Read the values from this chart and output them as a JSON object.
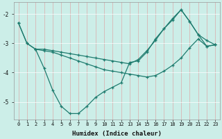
{
  "xlabel": "Humidex (Indice chaleur)",
  "bg_color": "#cceee8",
  "grid_color": "#aadddd",
  "line_color": "#1e7b6e",
  "xlim": [
    -0.5,
    23.5
  ],
  "ylim": [
    -5.6,
    -1.6
  ],
  "yticks": [
    -5,
    -4,
    -3,
    -2
  ],
  "xticks": [
    0,
    1,
    2,
    3,
    4,
    5,
    6,
    7,
    8,
    9,
    10,
    11,
    12,
    13,
    14,
    15,
    16,
    17,
    18,
    19,
    20,
    21,
    22,
    23
  ],
  "line1_x": [
    0,
    1,
    2,
    3,
    4,
    5,
    6,
    7,
    8,
    9,
    10,
    11,
    12,
    13,
    14,
    15,
    16,
    17,
    18,
    19,
    20,
    21,
    22,
    23
  ],
  "line1_y": [
    -2.3,
    -3.0,
    -3.2,
    -3.85,
    -4.6,
    -5.15,
    -5.4,
    -5.4,
    -5.15,
    -4.85,
    -4.65,
    -4.5,
    -4.35,
    -3.65,
    -3.6,
    -3.3,
    -2.85,
    -2.5,
    -2.2,
    -1.85,
    -2.25,
    -2.7,
    -3.1,
    -3.05
  ],
  "line2_x": [
    0,
    1,
    2,
    3,
    4,
    5,
    6,
    7,
    8,
    9,
    10,
    11,
    12,
    13,
    14,
    15,
    16,
    17,
    18,
    19,
    20,
    21,
    22,
    23
  ],
  "line2_y": [
    -2.3,
    -3.0,
    -3.2,
    -3.2,
    -3.25,
    -3.3,
    -3.35,
    -3.4,
    -3.45,
    -3.5,
    -3.55,
    -3.6,
    -3.65,
    -3.7,
    -3.55,
    -3.25,
    -2.9,
    -2.5,
    -2.15,
    -1.85,
    -2.25,
    -2.7,
    -2.9,
    -3.05
  ],
  "line3_x": [
    2,
    3,
    4,
    5,
    6,
    7,
    8,
    9,
    10,
    11,
    12,
    13,
    14,
    15,
    16,
    17,
    18,
    19,
    20,
    21,
    22,
    23
  ],
  "line3_y": [
    -3.2,
    -3.25,
    -3.3,
    -3.4,
    -3.5,
    -3.6,
    -3.7,
    -3.8,
    -3.9,
    -3.95,
    -4.0,
    -4.05,
    -4.1,
    -4.15,
    -4.1,
    -3.95,
    -3.75,
    -3.5,
    -3.15,
    -2.85,
    -3.1,
    -3.05
  ]
}
